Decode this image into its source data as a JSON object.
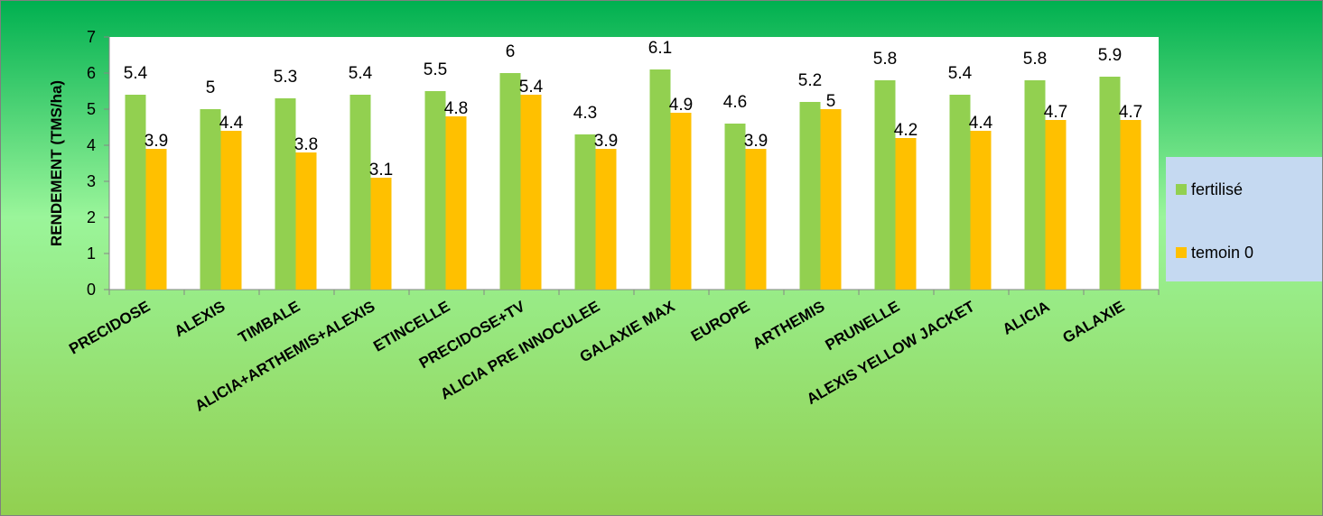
{
  "chart_data": {
    "type": "bar",
    "ylabel": "RENDEMENT (TMS/ha)",
    "xlabel": "",
    "ylim": [
      0,
      7
    ],
    "yticks": [
      0,
      1,
      2,
      3,
      4,
      5,
      6,
      7
    ],
    "grid": false,
    "legend_position": "right",
    "categories": [
      "PRECIDOSE",
      "ALEXIS",
      "TIMBALE",
      "ALICIA+ARTHEMIS+ALEXIS",
      "ETINCELLE",
      "PRECIDOSE+TV",
      "ALICIA PRE INNOCULEE",
      "GALAXIE MAX",
      "EUROPE",
      "ARTHEMIS",
      "PRUNELLE",
      "ALEXIS YELLOW JACKET",
      "ALICIA",
      "GALAXIE"
    ],
    "series": [
      {
        "name": "fertilisé",
        "color": "#92D050",
        "values": [
          5.4,
          5,
          5.3,
          5.4,
          5.5,
          6,
          4.3,
          6.1,
          4.6,
          5.2,
          5.8,
          5.4,
          5.8,
          5.9
        ]
      },
      {
        "name": "temoin 0",
        "color": "#FFC000",
        "values": [
          3.9,
          4.4,
          3.8,
          3.1,
          4.8,
          5.4,
          3.9,
          4.9,
          3.9,
          5,
          4.2,
          4.4,
          4.7,
          4.7
        ]
      }
    ]
  },
  "colors": {
    "background_top": "#00B050",
    "background_bottom": "#92D050",
    "plot_area": "#FFFFFF",
    "legend_bg": "#C5D9F1"
  }
}
